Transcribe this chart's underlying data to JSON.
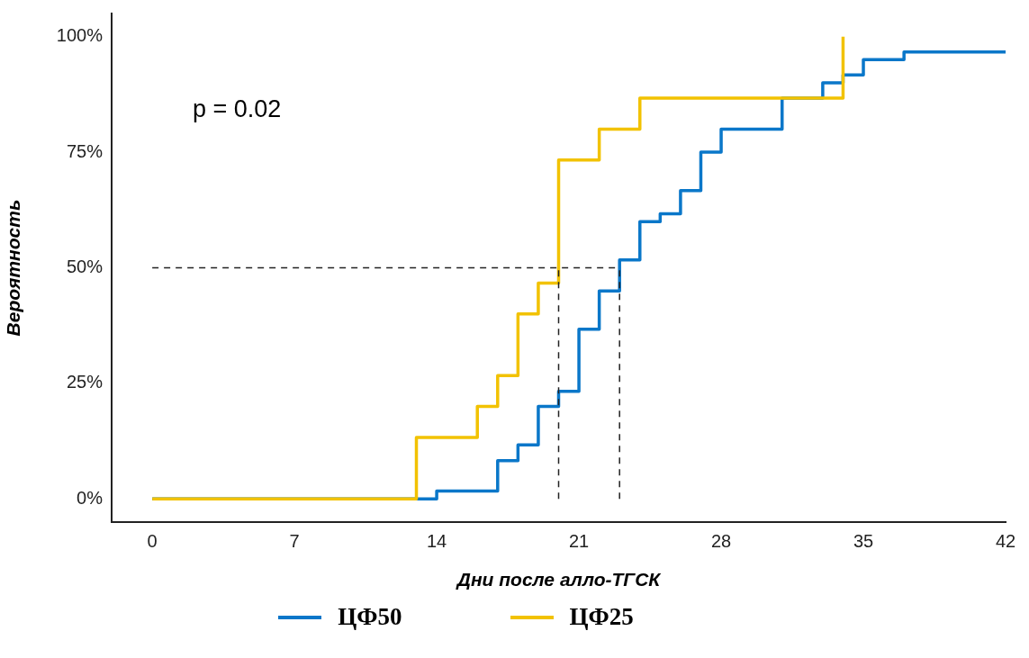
{
  "chart_data": {
    "type": "step",
    "xlabel": "Дни после алло-ТГСК",
    "ylabel": "Вероятность",
    "annotations": [
      "p = 0.02"
    ],
    "series": [
      {
        "name": "ЦФ50",
        "color": "#0a77c9",
        "x": [
          0,
          14,
          17,
          18,
          19,
          20,
          21,
          22,
          23,
          24,
          25,
          26,
          27,
          28,
          31,
          33,
          34,
          35,
          37,
          42
        ],
        "values": [
          0,
          1.7,
          8.3,
          11.7,
          20,
          23.3,
          36.7,
          45,
          51.7,
          60,
          61.7,
          66.7,
          75,
          80,
          86.7,
          90,
          91.7,
          95,
          96.7,
          96.7
        ]
      },
      {
        "name": "ЦФ25",
        "color": "#f2c200",
        "x": [
          0,
          13,
          16,
          17,
          18,
          19,
          20,
          22,
          24,
          34
        ],
        "values": [
          0,
          13.3,
          20,
          26.7,
          40,
          46.7,
          73.3,
          80,
          86.7,
          100
        ]
      }
    ],
    "xlim": [
      -2,
      42
    ],
    "xticks": [
      0,
      7,
      14,
      21,
      28,
      35,
      42
    ],
    "ylim": [
      -5,
      105
    ],
    "yticks": [
      {
        "value": 0,
        "label": "0%"
      },
      {
        "value": 25,
        "label": "25%"
      },
      {
        "value": 50,
        "label": "50%"
      },
      {
        "value": 75,
        "label": "75%"
      },
      {
        "value": 100,
        "label": "100%"
      }
    ],
    "ref_lines": [
      {
        "axis": "y",
        "value": 50,
        "line_style": "dashed"
      },
      {
        "axis": "x",
        "value": 20,
        "line_style": "dashed"
      },
      {
        "axis": "x",
        "value": 23,
        "line_style": "dashed"
      }
    ],
    "grid": false,
    "legend": "bottom",
    "marker": "none",
    "line_style": "solid"
  }
}
